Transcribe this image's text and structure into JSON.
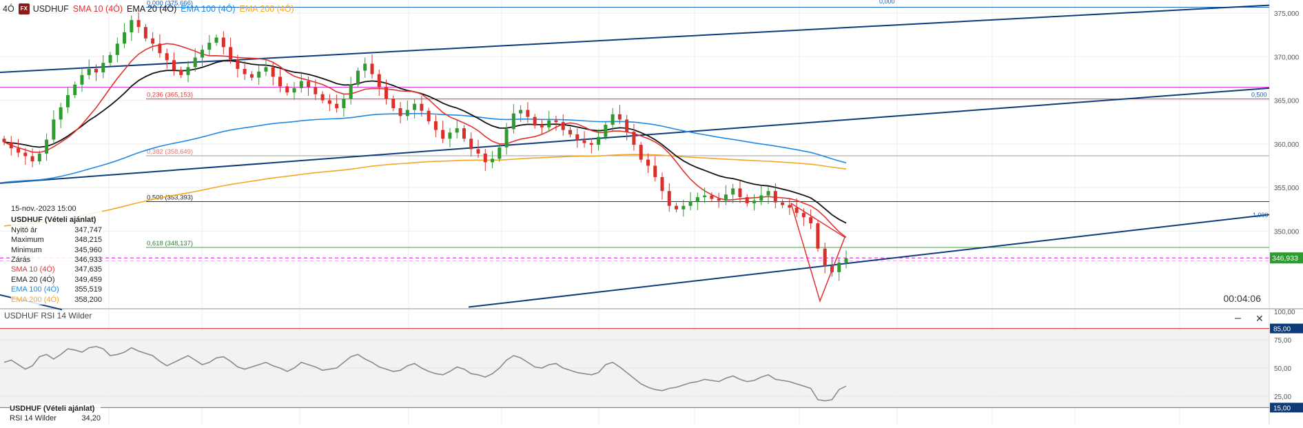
{
  "header": {
    "timeframe": "4Ó",
    "fx_badge": "FX",
    "symbol": "USDHUF",
    "indicators": [
      {
        "label": "SMA 10 (4Ó)",
        "color": "#e03030"
      },
      {
        "label": "EMA 20 (4Ó)",
        "color": "#111111"
      },
      {
        "label": "EMA 100 (4Ó)",
        "color": "#1e88e5"
      },
      {
        "label": "EMA 200 (4Ó)",
        "color": "#f5a623"
      }
    ]
  },
  "info_panel": {
    "datetime": "15-nov.-2023 15:00",
    "title": "USDHUF (Vételi ajánlat)",
    "rows": [
      {
        "label": "Nyitó ár",
        "value": "347,747",
        "color": "#222222"
      },
      {
        "label": "Maximum",
        "value": "348,215",
        "color": "#222222"
      },
      {
        "label": "Minimum",
        "value": "345,960",
        "color": "#222222"
      },
      {
        "label": "Zárás",
        "value": "346,933",
        "color": "#222222"
      },
      {
        "label": "SMA 10 (4Ó)",
        "value": "347,635",
        "color": "#e03030"
      },
      {
        "label": "EMA 20 (4Ó)",
        "value": "349,459",
        "color": "#111111"
      },
      {
        "label": "EMA 100 (4Ó)",
        "value": "355,519",
        "color": "#1e88e5"
      },
      {
        "label": "EMA 200 (4Ó)",
        "value": "358,200",
        "color": "#f5a623"
      }
    ]
  },
  "price_axis": {
    "ticks": [
      "375,000",
      "370,000",
      "365,000",
      "360,000",
      "355,000",
      "350,000"
    ],
    "current_price": "346,933",
    "countdown": "00:04:06"
  },
  "fib_left": [
    {
      "label": "0,000 (375,666)",
      "color": "#1565c0"
    },
    {
      "label": "0,236 (365,153)",
      "color": "#e53935"
    },
    {
      "label": "0,382 (358,649)",
      "color": "#e57373"
    },
    {
      "label": "0,500 (353,393)",
      "color": "#222222"
    },
    {
      "label": "0,618 (348,137)",
      "color": "#2e7d32"
    }
  ],
  "channel_labels": [
    "0,000",
    "0,500",
    "1,000"
  ],
  "rsi": {
    "header": "USDHUF   RSI 14 Wilder",
    "axis_ticks": [
      "100,00",
      "75,00",
      "50,00",
      "25,00"
    ],
    "upper_level": "85,00",
    "lower_level": "15,00",
    "panel_title": "USDHUF (Vételi ajánlat)",
    "panel_label": "RSI 14 Wilder",
    "panel_value": "34,20",
    "minimize": "–",
    "close": "✕"
  },
  "colors": {
    "sma10": "#e03030",
    "ema20": "#111111",
    "ema100": "#1e88e5",
    "ema200": "#f5a623",
    "up": "#2e9b2e",
    "down": "#d9302c",
    "channel": "#0d3b7a",
    "magenta": "#e040e0",
    "rsi_upper": "#c62828",
    "rsi_lower": "#2e9b2e",
    "price_tag": "#2e9b2e"
  },
  "chart_data": {
    "type": "candlestick",
    "price_range": [
      341.5,
      376.5
    ],
    "rsi_range": [
      0,
      100
    ],
    "closes": [
      360.2,
      359.5,
      359.0,
      358.6,
      358.0,
      358.9,
      360.5,
      362.8,
      364.2,
      365.6,
      366.8,
      367.9,
      368.6,
      368.2,
      369.3,
      370.2,
      371.5,
      372.8,
      374.2,
      373.4,
      372.1,
      371.5,
      370.4,
      369.6,
      368.5,
      367.9,
      368.8,
      369.9,
      370.8,
      371.6,
      372.2,
      371.1,
      369.7,
      368.6,
      368.0,
      367.6,
      368.3,
      368.8,
      367.7,
      366.6,
      365.9,
      366.4,
      367.2,
      366.5,
      365.7,
      365.0,
      364.6,
      364.1,
      365.2,
      366.8,
      368.4,
      369.2,
      368.0,
      366.5,
      365.2,
      364.1,
      363.2,
      363.9,
      364.6,
      363.8,
      362.6,
      361.6,
      360.6,
      361.3,
      361.8,
      360.6,
      359.4,
      358.9,
      357.9,
      358.3,
      359.6,
      361.7,
      363.5,
      363.9,
      363.1,
      362.1,
      361.9,
      362.7,
      362.5,
      361.6,
      361.1,
      360.4,
      360.1,
      359.9,
      360.8,
      362.2,
      363.4,
      362.8,
      361.4,
      359.9,
      358.2,
      357.5,
      356.2,
      354.6,
      352.9,
      352.5,
      352.9,
      353.4,
      353.9,
      354.1,
      353.7,
      353.5,
      354.2,
      354.9,
      353.9,
      353.2,
      353.5,
      354.1,
      354.6,
      353.3,
      353.0,
      352.7,
      352.1,
      351.6,
      350.9,
      348.0,
      346.0,
      345.3,
      346.4,
      346.9
    ],
    "rsi_values": [
      55,
      57,
      53,
      49,
      52,
      60,
      62,
      58,
      62,
      67,
      66,
      64,
      68,
      69,
      67,
      61,
      62,
      64,
      68,
      65,
      63,
      61,
      56,
      52,
      55,
      58,
      61,
      57,
      53,
      55,
      59,
      60,
      56,
      51,
      49,
      51,
      53,
      55,
      52,
      50,
      47,
      50,
      55,
      53,
      51,
      48,
      49,
      50,
      55,
      60,
      62,
      58,
      55,
      51,
      49,
      47,
      48,
      52,
      54,
      50,
      47,
      45,
      44,
      47,
      51,
      49,
      45,
      44,
      42,
      45,
      50,
      57,
      61,
      59,
      55,
      51,
      50,
      53,
      54,
      50,
      48,
      46,
      45,
      44,
      46,
      53,
      55,
      51,
      46,
      41,
      36,
      33,
      31,
      30,
      32,
      33,
      35,
      37,
      38,
      40,
      39,
      38,
      41,
      43,
      40,
      38,
      39,
      42,
      44,
      40,
      39,
      38,
      36,
      34,
      32,
      22,
      21,
      22,
      31,
      34
    ]
  }
}
